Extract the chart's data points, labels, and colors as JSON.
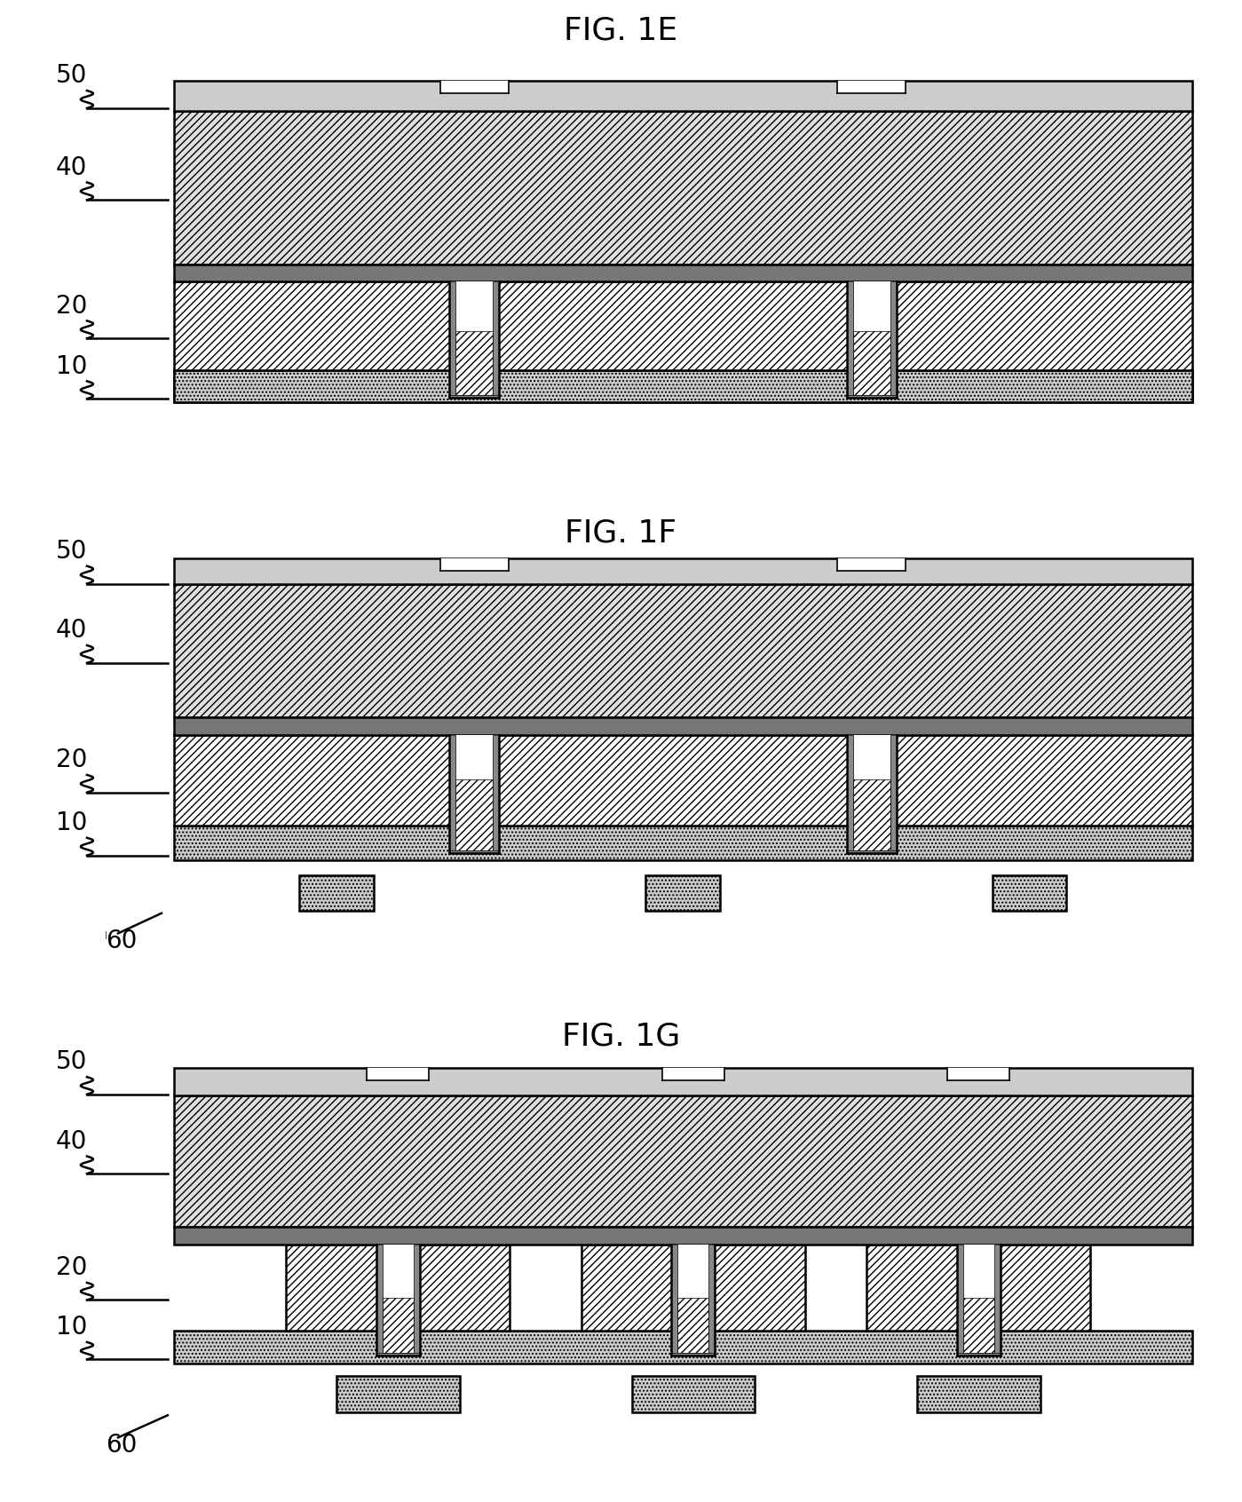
{
  "bg_color": "#ffffff",
  "fig_titles": [
    "FIG. 1E",
    "FIG. 1F",
    "FIG. 1G"
  ],
  "title_fontsize": 26,
  "label_fontsize": 20,
  "lw_main": 1.8,
  "lw_thin": 1.2,
  "hatch_dense": "////",
  "hatch_light": "////",
  "color_hatch_fill": "#d8d8d8",
  "color_layer10": "#c0c0c0",
  "color_layer20_fill": "#ffffff",
  "color_thin_layer": "#888888",
  "color_top_layer": "#d0d0d0",
  "color_white": "#ffffff",
  "color_black": "#000000",
  "color_trench_fill": "#ffffff",
  "color_pad": "#d0d0d0"
}
